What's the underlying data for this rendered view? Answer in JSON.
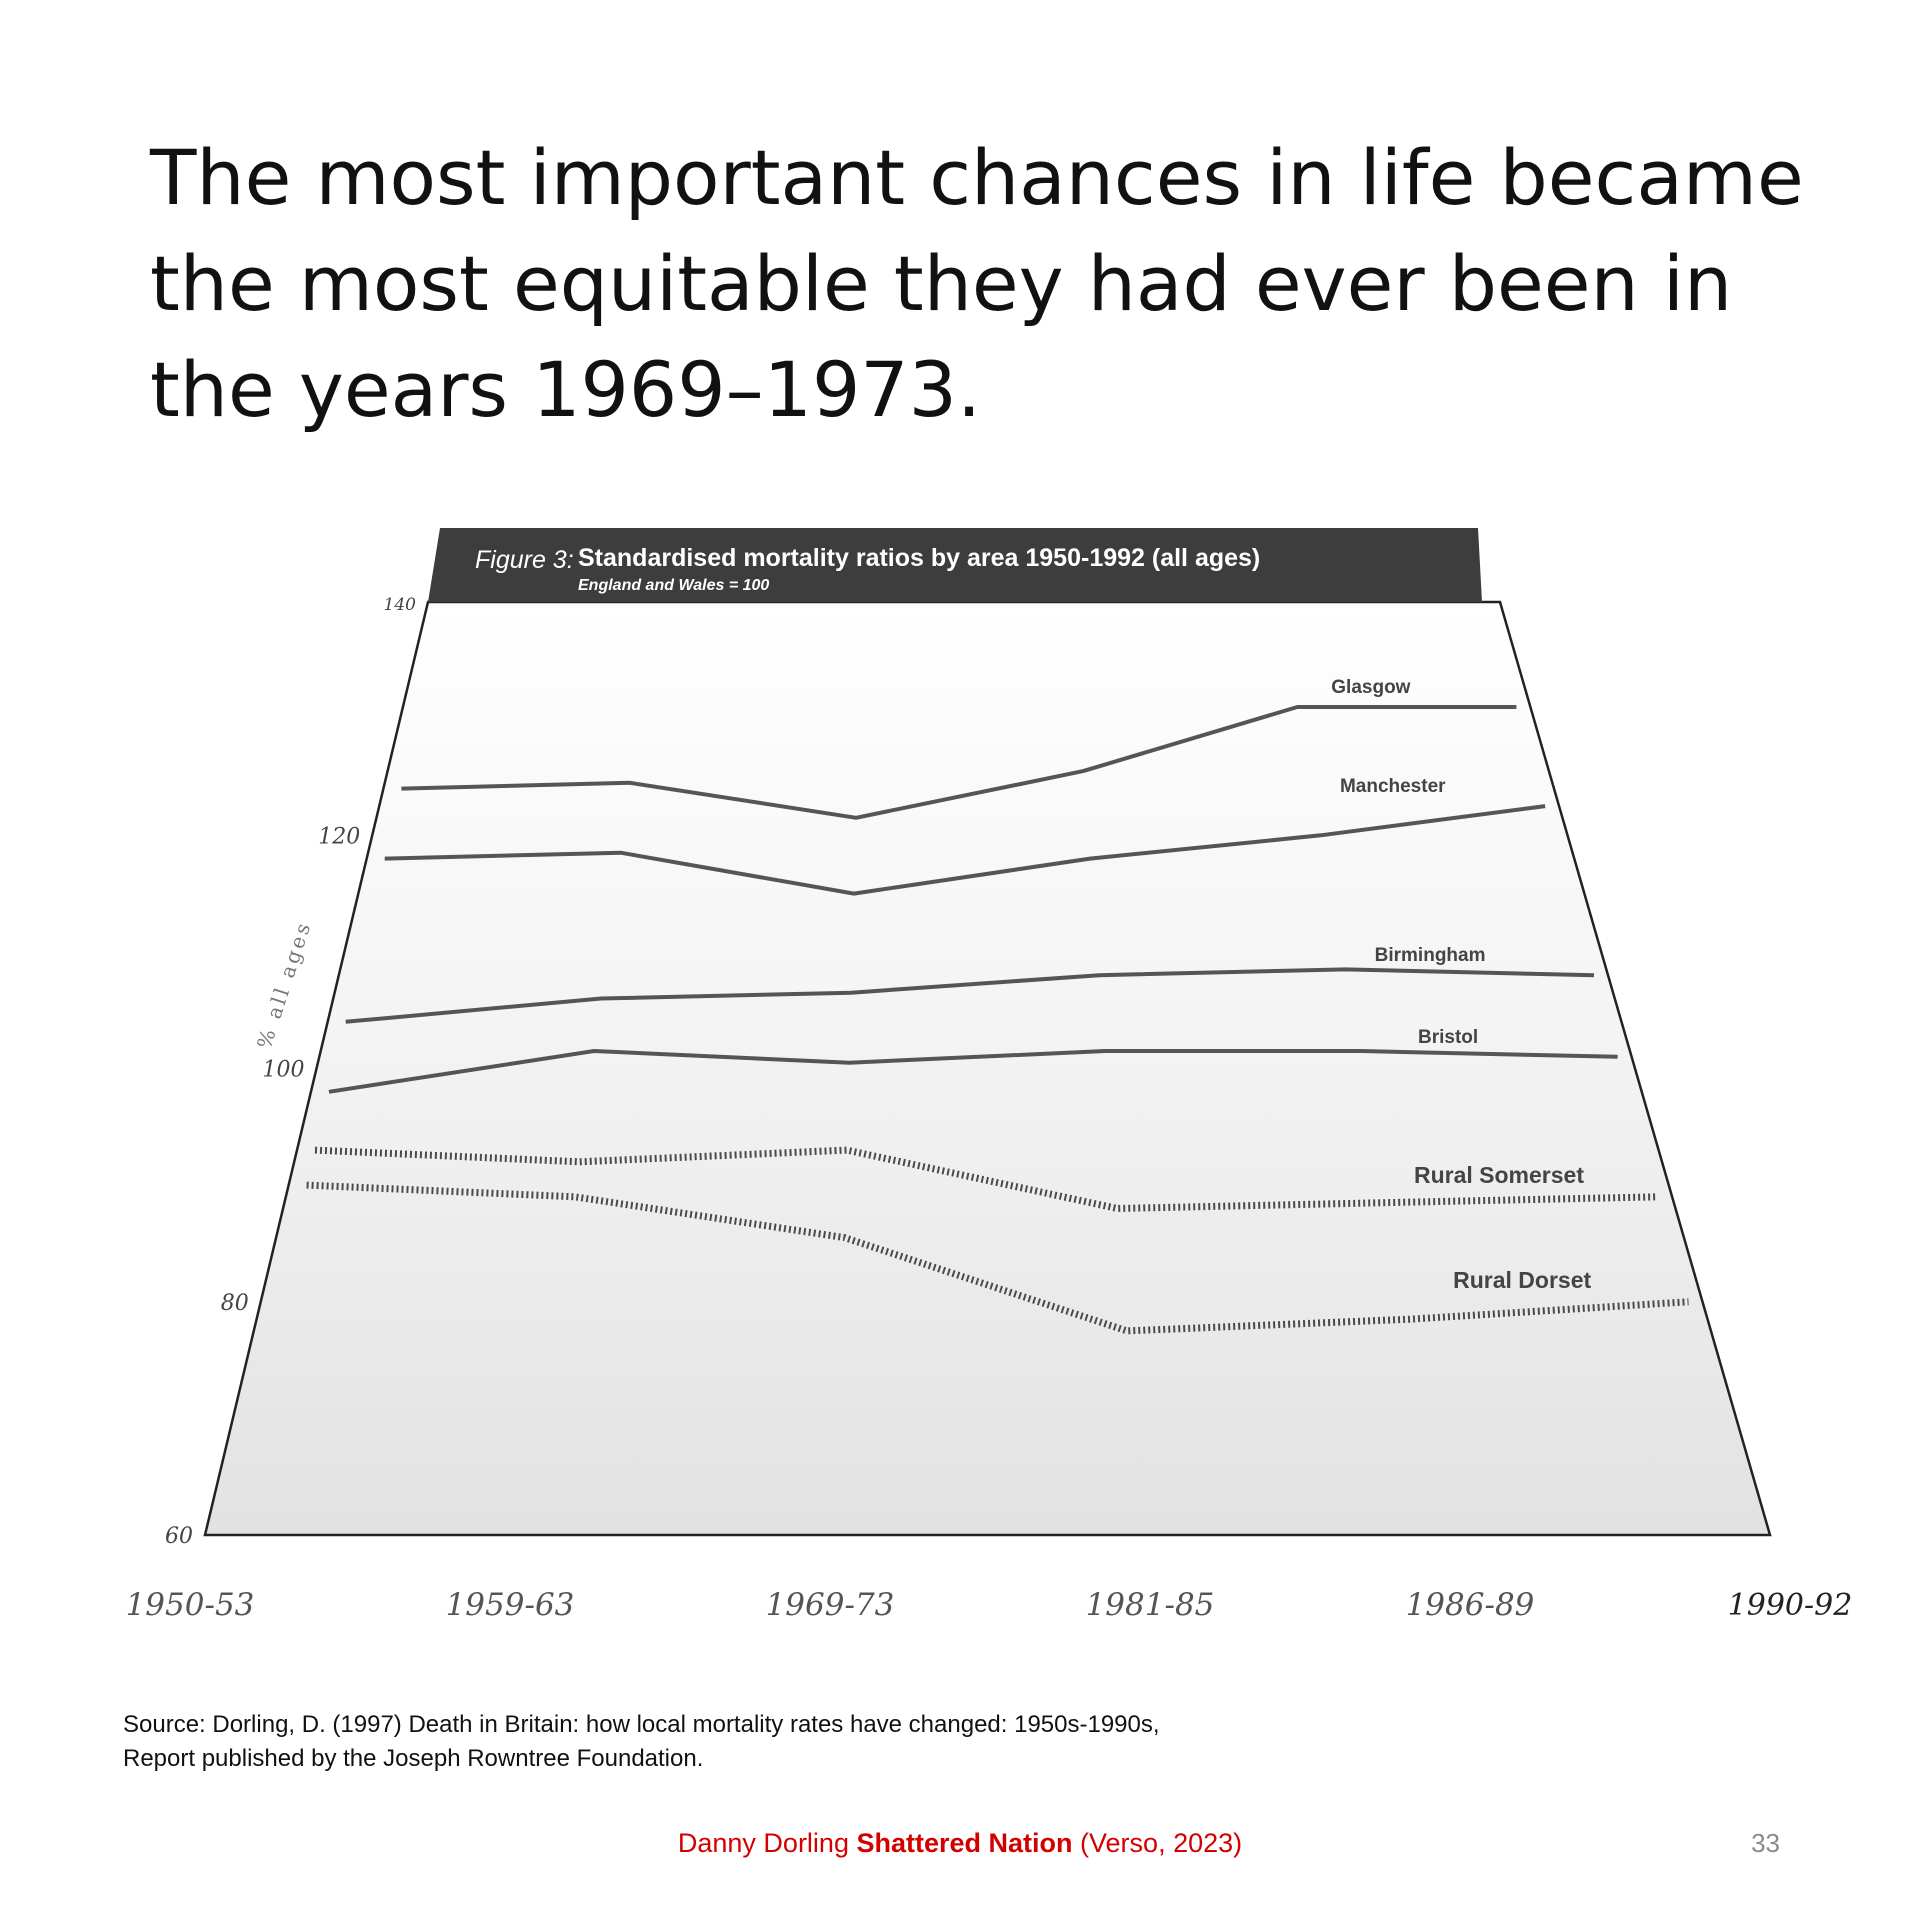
{
  "slide": {
    "title": "The most important chances in life became the most equitable they had ever been in the years 1969–1973.",
    "source": "Source: Dorling, D. (1997) Death in Britain: how local mortality rates have changed: 1950s-1990s, Report published by the Joseph Rowntree Foundation.",
    "credit_author": "Danny Dorling",
    "credit_book": "Shattered Nation",
    "credit_publisher": "(Verso, 2023)",
    "page_number": "33"
  },
  "colors": {
    "title_text": "#111111",
    "credit": "#d40000",
    "header_band": "#3d3d3d",
    "series_line": "#555555"
  },
  "chart_data": {
    "type": "line",
    "title_prefix": "Figure 3:",
    "title": "Standardised mortality ratios by area 1950-1992 (all ages)",
    "subtitle": "England and Wales = 100",
    "ylabel": "% all ages",
    "ylim": [
      60,
      140
    ],
    "yticks": [
      60,
      80,
      100,
      120,
      140
    ],
    "ytick_labels": [
      "60",
      "80",
      "100",
      "120",
      "140"
    ],
    "categories": [
      "1950-53",
      "1959-63",
      "1969-73",
      "1981-85",
      "1986-89",
      "1990-92"
    ],
    "category_labels": [
      "1950-53",
      "1959-63",
      "1969-73",
      "1981-85",
      "1986-89",
      "1990-92"
    ],
    "grid": false,
    "series": [
      {
        "name": "Glasgow",
        "style": "solid",
        "values": [
          124,
          124.5,
          121.5,
          125.5,
          131,
          131
        ]
      },
      {
        "name": "Manchester",
        "style": "solid",
        "values": [
          118,
          118.5,
          115,
          118,
          120,
          122.5
        ]
      },
      {
        "name": "Birmingham",
        "style": "solid",
        "values": [
          104,
          106,
          106.5,
          108,
          108.5,
          108
        ]
      },
      {
        "name": "Bristol",
        "style": "solid",
        "values": [
          98,
          101.5,
          100.5,
          101.5,
          101.5,
          101
        ]
      },
      {
        "name": "Rural Somerset",
        "style": "dotted",
        "values": [
          93,
          92,
          93,
          88,
          88.5,
          89
        ]
      },
      {
        "name": "Rural Dorset",
        "style": "dotted",
        "values": [
          90,
          89,
          85.5,
          77.5,
          78.5,
          80
        ]
      }
    ]
  }
}
